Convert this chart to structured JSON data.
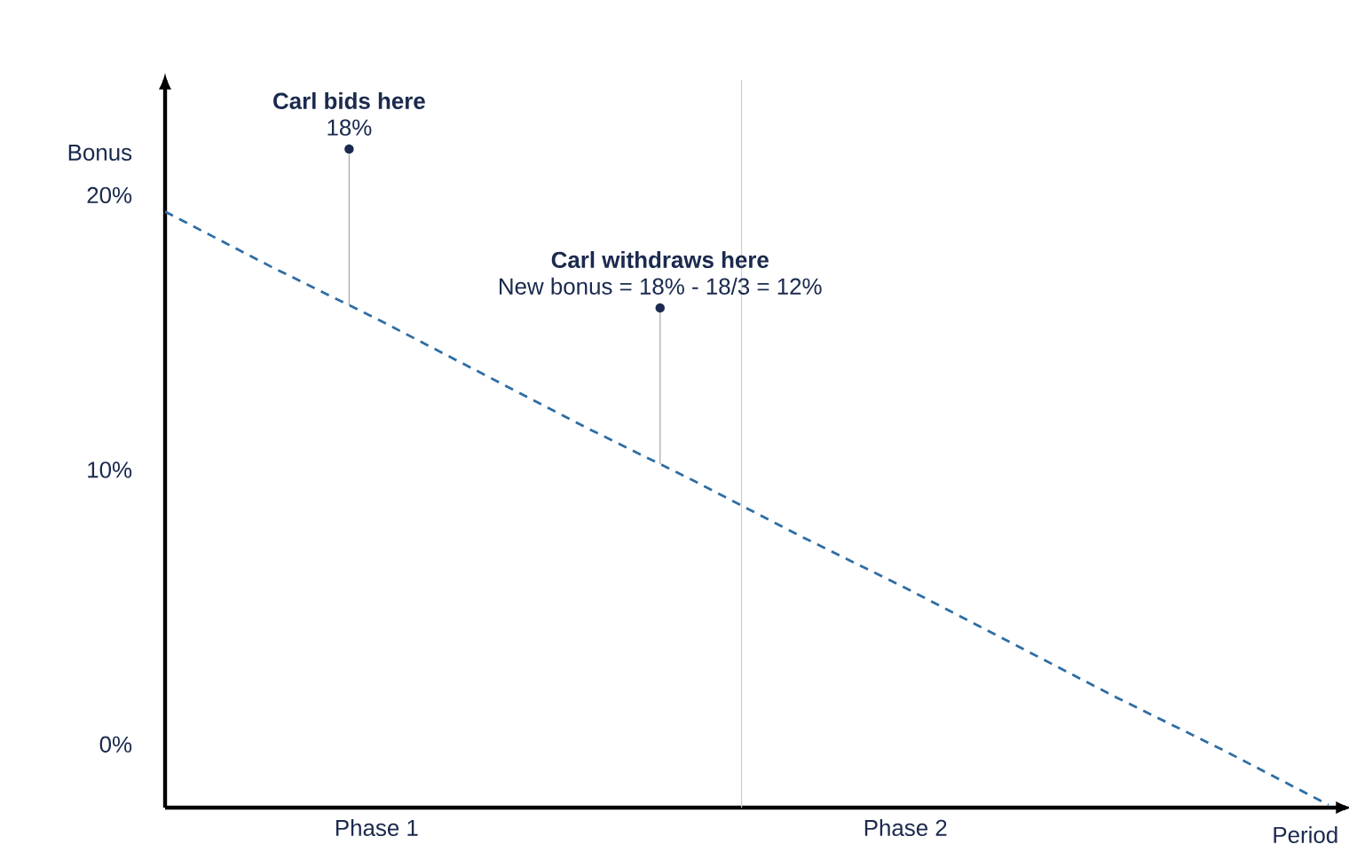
{
  "chart_data": {
    "type": "line",
    "xlabel": "Period",
    "ylabel": "Bonus",
    "categories": [
      null,
      null,
      "Phase 1",
      null,
      null,
      null,
      null,
      "Phase 2",
      null,
      null,
      null,
      null
    ],
    "ylim": [
      -2.3,
      24.2
    ],
    "yticks": [
      {
        "value": 0,
        "label": "0%"
      },
      {
        "value": 10,
        "label": "10%"
      },
      {
        "value": 20,
        "label": "20%"
      }
    ],
    "series": [
      {
        "values": [
          19.4,
          17.4,
          15.5,
          13.5,
          11.5,
          9.6,
          7.6,
          5.7,
          3.7,
          1.7,
          -0.2,
          -2.2
        ],
        "color": "#2e6da4",
        "line_style": "dashed"
      }
    ],
    "annotations": [
      "Carl bids here",
      "18%",
      "Carl withdraws here",
      "New bonus = 18% - 18/3 = 12%"
    ],
    "grid": false
  }
}
